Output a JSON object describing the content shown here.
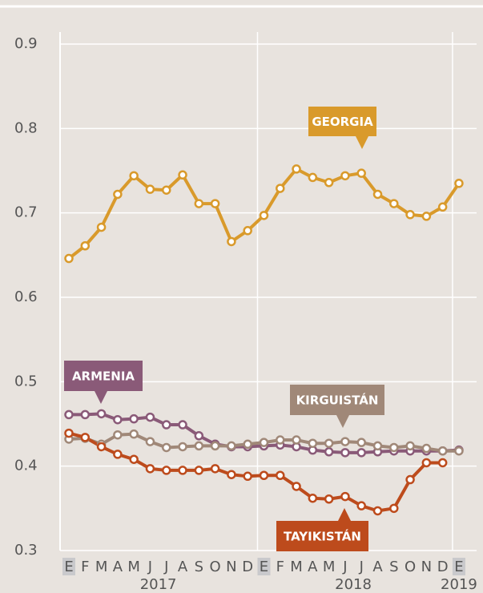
{
  "chart_data": {
    "type": "line",
    "categories": [
      "E",
      "F",
      "M",
      "A",
      "M",
      "J",
      "J",
      "A",
      "S",
      "O",
      "N",
      "D",
      "E",
      "F",
      "M",
      "A",
      "M",
      "J",
      "J",
      "A",
      "S",
      "O",
      "N",
      "D",
      "E"
    ],
    "years": [
      "2017",
      "2018",
      "2019"
    ],
    "ylim": [
      0.3,
      0.9
    ],
    "yticks": [
      0.3,
      0.4,
      0.5,
      0.6,
      0.7,
      0.8,
      0.9
    ],
    "grid": true,
    "series": [
      {
        "name": "GEORGIA",
        "color": "#d99a2b",
        "values": [
          0.646,
          0.661,
          0.683,
          0.722,
          0.744,
          0.728,
          0.727,
          0.745,
          0.711,
          0.711,
          0.666,
          0.679,
          0.697,
          0.729,
          0.752,
          0.742,
          0.736,
          0.744,
          0.747,
          0.722,
          0.711,
          0.698,
          0.696,
          0.707,
          0.735
        ]
      },
      {
        "name": "ARMENIA",
        "color": "#8a5a78",
        "values": [
          0.461,
          0.461,
          0.462,
          0.455,
          0.456,
          0.458,
          0.449,
          0.449,
          0.436,
          0.426,
          0.423,
          0.423,
          0.424,
          0.425,
          0.423,
          0.419,
          0.417,
          0.416,
          0.416,
          0.417,
          0.418,
          0.418,
          0.418,
          0.418,
          0.419
        ]
      },
      {
        "name": "KIRGUISTÁN",
        "color": "#a08878",
        "values": [
          0.432,
          0.433,
          0.426,
          0.437,
          0.438,
          0.429,
          0.422,
          0.423,
          0.424,
          0.424,
          0.424,
          0.426,
          0.428,
          0.431,
          0.431,
          0.427,
          0.427,
          0.429,
          0.428,
          0.424,
          0.422,
          0.424,
          0.421,
          0.418,
          0.418
        ]
      },
      {
        "name": "TAYIKISTÁN",
        "color": "#bd4b1c",
        "values": [
          0.439,
          0.434,
          0.423,
          0.414,
          0.408,
          0.397,
          0.395,
          0.395,
          0.395,
          0.397,
          0.39,
          0.388,
          0.389,
          0.389,
          0.376,
          0.362,
          0.361,
          0.364,
          0.353,
          0.347,
          0.35,
          0.384,
          0.404,
          0.404,
          null
        ]
      }
    ]
  }
}
